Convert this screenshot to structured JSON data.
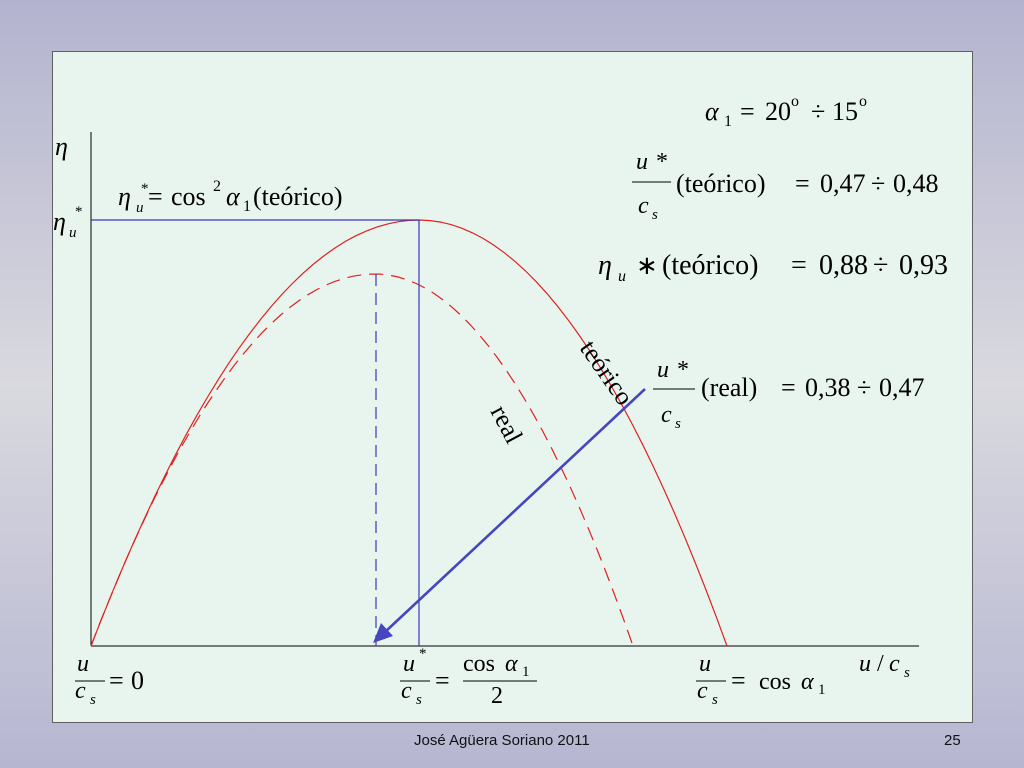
{
  "footer": {
    "author": "José Agüera Soriano 2011",
    "page_number": "25"
  },
  "axes": {
    "y_label": "η",
    "y_star_label": "η",
    "y_star_sub": "u",
    "y_star_sup": "*",
    "x_label_u": "u",
    "x_label_slash": "/",
    "x_label_c": "c",
    "x_label_sub": "s"
  },
  "curve_labels": {
    "theoretical": "teórico",
    "real": "real"
  },
  "formula_peak": {
    "eta": "η",
    "sub": "u",
    "sup": "*",
    "eq": "=",
    "cos": "cos",
    "cos_exp": "2",
    "alpha": "α",
    "alpha_sub": "1",
    "tag": "(teórico)"
  },
  "x_ticks": {
    "zero": {
      "num": "u",
      "den": "c",
      "den_sub": "s",
      "eq": "=",
      "value": "0"
    },
    "optimum": {
      "num": "u",
      "num_sup": "*",
      "den": "c",
      "den_sub": "s",
      "eq": "=",
      "rhs_num": "cos",
      "rhs_alpha": "α",
      "rhs_alpha_sub": "1",
      "rhs_den": "2"
    },
    "max": {
      "num": "u",
      "den": "c",
      "den_sub": "s",
      "eq": "=",
      "rhs": "cos",
      "rhs_alpha": "α",
      "rhs_alpha_sub": "1"
    }
  },
  "side_formulas": {
    "alpha": {
      "alpha": "α",
      "sub": "1",
      "eq": "=",
      "from": "20",
      "deg1": "o",
      "div": "÷",
      "to": "15",
      "deg2": "o"
    },
    "ratio_theoretical": {
      "num": "u",
      "num_star": "*",
      "den": "c",
      "den_sub": "s",
      "tag": "(teórico)",
      "eq": "=",
      "from": "0,47",
      "div": "÷",
      "to": "0,48"
    },
    "eta_theoretical": {
      "eta": "η",
      "sub": "u",
      "star": "∗",
      "tag": "(teórico)",
      "eq": "=",
      "from": "0,88",
      "div": "÷",
      "to": "0,93"
    },
    "ratio_real": {
      "num": "u",
      "num_star": "*",
      "den": "c",
      "den_sub": "s",
      "tag": "(real)",
      "eq": "=",
      "from": "0,38",
      "div": "÷",
      "to": "0,47"
    }
  },
  "colors": {
    "axis": "#000000",
    "theoretical_curve": "#e02020",
    "real_curve": "#e02020",
    "guide_lines": "#3838b8",
    "arrow": "#4646c0"
  }
}
